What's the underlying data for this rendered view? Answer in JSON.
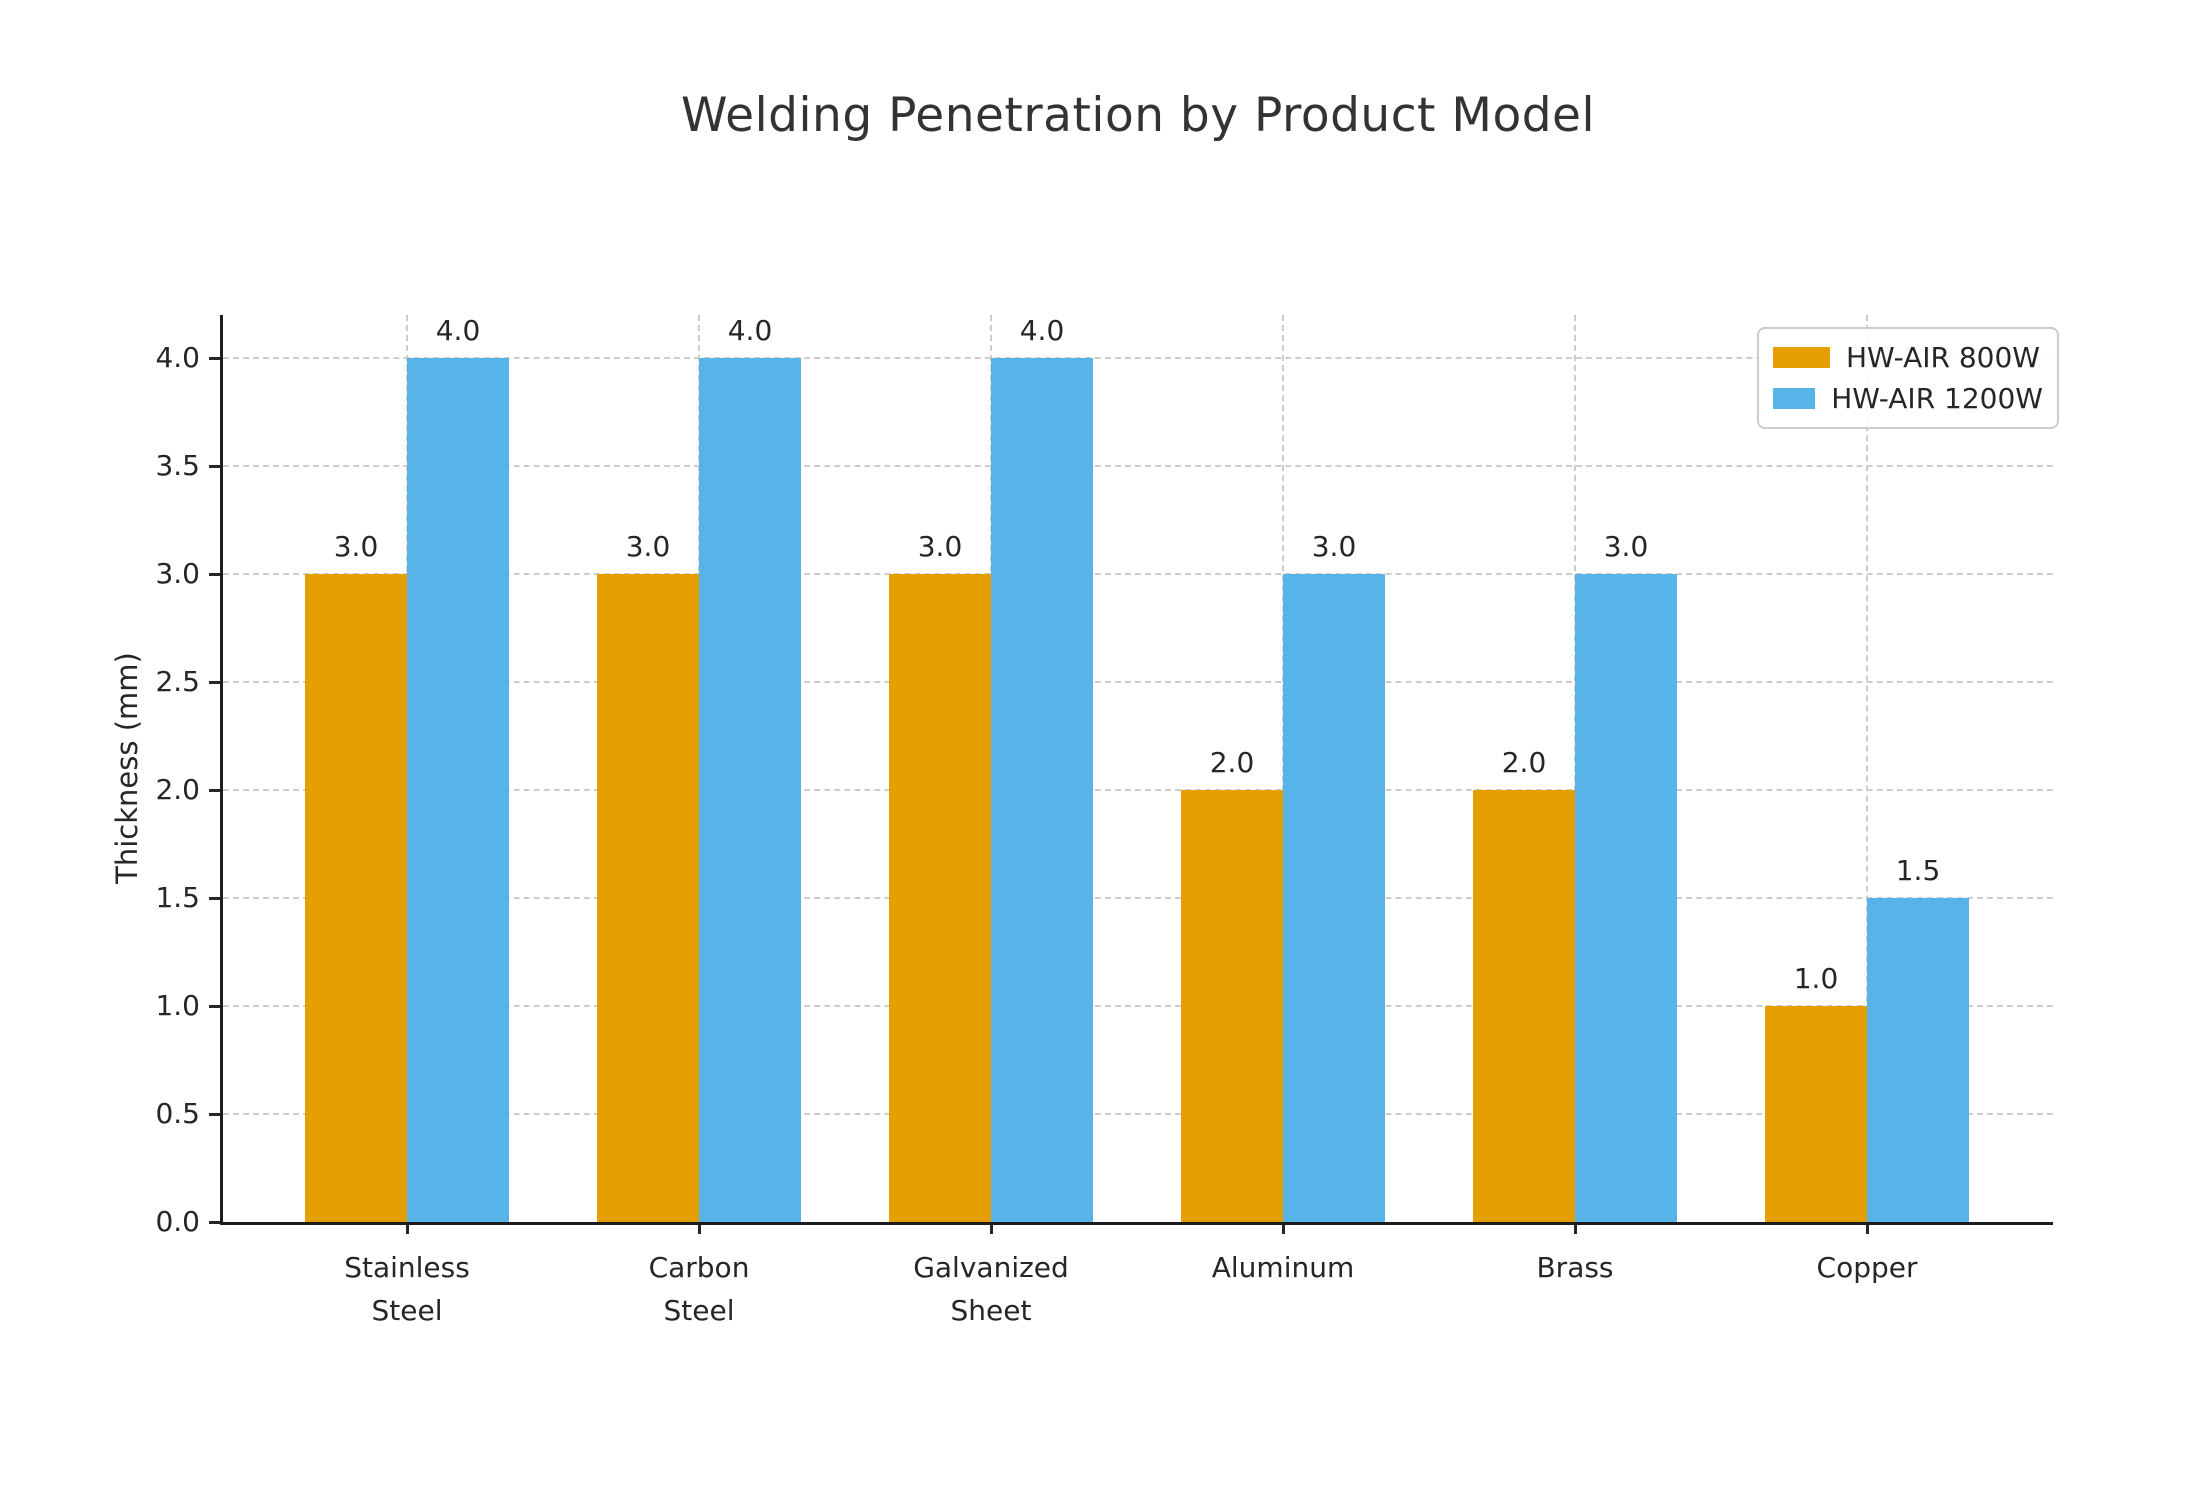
{
  "title": "Welding Penetration by Product Model",
  "colors": {
    "series_800w": "#E69F00",
    "series_1200w": "#56B4E9",
    "grid": "#cdcdcd",
    "axis": "#1c1c1c",
    "text": "#262626",
    "background": "#ffffff"
  },
  "chart_data": {
    "type": "bar",
    "title": "Welding Penetration by Product Model",
    "categories": [
      "Stainless\nSteel",
      "Carbon\nSteel",
      "Galvanized\nSheet",
      "Aluminum",
      "Brass",
      "Copper"
    ],
    "series": [
      {
        "name": "HW-AIR 800W",
        "color": "#E69F00",
        "values": [
          3.0,
          3.0,
          3.0,
          2.0,
          2.0,
          1.0
        ]
      },
      {
        "name": "HW-AIR 1200W",
        "color": "#56B4E9",
        "values": [
          4.0,
          4.0,
          4.0,
          3.0,
          3.0,
          1.5
        ]
      }
    ],
    "xlabel": "",
    "ylabel": "Thickness (mm)",
    "ylim": [
      0,
      4.2
    ],
    "yticks": [
      0.0,
      0.5,
      1.0,
      1.5,
      2.0,
      2.5,
      3.0,
      3.5,
      4.0
    ],
    "grid": true,
    "grid_style": "dashed",
    "bar_value_labels": true,
    "legend_position": "upper right",
    "spines_hidden": [
      "top",
      "right"
    ]
  }
}
